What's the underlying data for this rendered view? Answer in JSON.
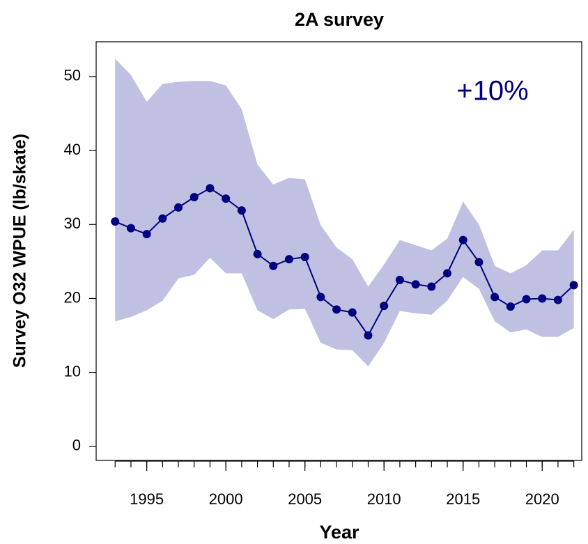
{
  "chart_data": {
    "type": "line",
    "title": "2A survey",
    "x_label": "Year",
    "y_label": "Survey O32 WPUE (lb/skate)",
    "annotation": "+10%",
    "x": [
      1993,
      1994,
      1995,
      1996,
      1997,
      1998,
      1999,
      2000,
      2001,
      2002,
      2003,
      2004,
      2005,
      2006,
      2007,
      2008,
      2009,
      2010,
      2011,
      2012,
      2013,
      2014,
      2015,
      2016,
      2017,
      2018,
      2019,
      2020,
      2021,
      2022
    ],
    "values": [
      30.4,
      29.5,
      28.7,
      30.8,
      32.3,
      33.7,
      34.9,
      33.5,
      31.9,
      26.0,
      24.4,
      25.3,
      25.6,
      20.2,
      18.5,
      18.1,
      15.0,
      19.0,
      22.5,
      21.9,
      21.6,
      23.4,
      27.9,
      24.9,
      20.2,
      18.9,
      19.9,
      20.0,
      19.8,
      21.8
    ],
    "upper": [
      52.4,
      50.2,
      46.6,
      49.0,
      49.3,
      49.4,
      49.4,
      48.8,
      45.6,
      38.1,
      35.4,
      36.3,
      36.1,
      29.9,
      26.9,
      25.3,
      21.6,
      24.6,
      27.9,
      27.2,
      26.5,
      28.1,
      33.1,
      30.0,
      24.4,
      23.4,
      24.5,
      26.5,
      26.5,
      29.3
    ],
    "lower": [
      16.9,
      17.5,
      18.4,
      19.7,
      22.7,
      23.2,
      25.5,
      23.4,
      23.4,
      18.4,
      17.2,
      18.5,
      18.6,
      14.0,
      13.1,
      13.0,
      10.8,
      14.0,
      18.3,
      18.0,
      17.8,
      19.7,
      22.9,
      21.3,
      16.9,
      15.4,
      15.8,
      14.8,
      14.8,
      16.0
    ],
    "color": "#000080",
    "band_color": "#c0c0e2",
    "xlim": [
      1991.8,
      2022.5
    ],
    "ylim": [
      -1.9,
      54.7
    ],
    "xticks": [
      1995,
      2000,
      2005,
      2010,
      2015,
      2020
    ],
    "yticks": [
      0,
      10,
      20,
      30,
      40,
      50
    ]
  }
}
